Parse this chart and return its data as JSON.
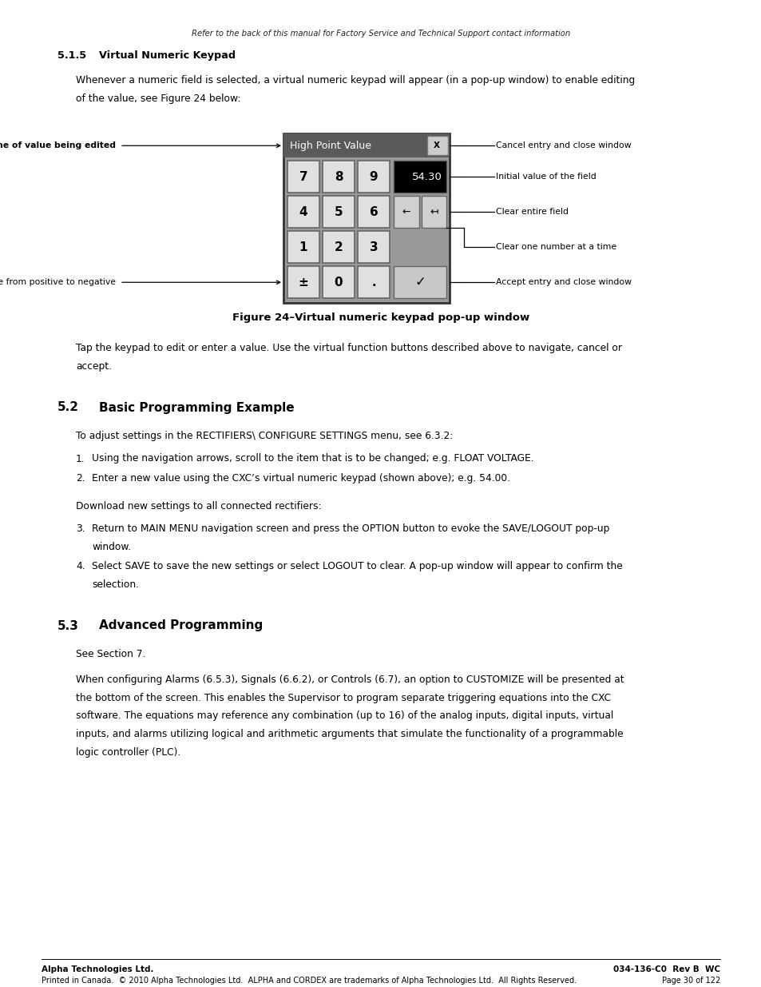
{
  "page_top_italic": "Refer to the back of this manual for Factory Service and Technical Support contact information",
  "section_515_num": "5.1.5",
  "section_515_title": "Virtual Numeric Keypad",
  "para_515_1": "Whenever a numeric field is selected, a virtual numeric keypad will appear (in a pop-up window) to enable editing",
  "para_515_2": "of the value, see Figure 24 below:",
  "keypad_label_name": "Name of value being edited",
  "keypad_label_toggle": "Toggle from positive to negative",
  "keypad_title": "High Point Value",
  "keypad_display": "54.30",
  "keypad_buttons": [
    [
      "7",
      "8",
      "9"
    ],
    [
      "4",
      "5",
      "6"
    ],
    [
      "1",
      "2",
      "3"
    ],
    [
      "±",
      "0",
      "."
    ]
  ],
  "keypad_right_labels": [
    "Cancel entry and close window",
    "Initial value of the field",
    "Clear entire field",
    "Clear one number at a time",
    "Accept entry and close window"
  ],
  "fig_caption": "Figure 24–Virtual numeric keypad pop-up window",
  "para_tap_1": "Tap the keypad to edit or enter a value. Use the virtual function buttons described above to navigate, cancel or",
  "para_tap_2": "accept.",
  "section_52_num": "5.2",
  "section_52_title": "Basic Programming Example",
  "para_52_intro": "To adjust settings in the RECTIFIERS\\ CONFIGURE SETTINGS menu, see 6.3.2:",
  "list_52_a1": "Using the navigation arrows, scroll to the item that is to be changed; e.g. FLOAT VOLTAGE.",
  "list_52_a2": "Enter a new value using the CXC’s virtual numeric keypad (shown above); e.g. 54.00.",
  "para_52_download": "Download new settings to all connected rectifiers:",
  "list_52_b3_1": "Return to MAIN MENU navigation screen and press the OPTION button to evoke the SAVE/LOGOUT pop-up",
  "list_52_b3_2": "window.",
  "list_52_b4_1": "Select SAVE to save the new settings or select LOGOUT to clear. A pop-up window will appear to confirm the",
  "list_52_b4_2": "selection.",
  "section_53_num": "5.3",
  "section_53_title": "Advanced Programming",
  "para_53_see": "See Section 7.",
  "para_53_1": "When configuring Alarms (6.5.3), Signals (6.6.2), or Controls (6.7), an option to CUSTOMIZE will be presented at",
  "para_53_2": "the bottom of the screen. This enables the Supervisor to program separate triggering equations into the CXC",
  "para_53_3": "software. The equations may reference any combination (up to 16) of the analog inputs, digital inputs, virtual",
  "para_53_4": "inputs, and alarms utilizing logical and arithmetic arguments that simulate the functionality of a programmable",
  "para_53_5": "logic controller (PLC).",
  "footer_left_bold": "Alpha Technologies Ltd.",
  "footer_left": "Printed in Canada.  © 2010 Alpha Technologies Ltd.  ALPHA and CORDEX are trademarks of Alpha Technologies Ltd.  All Rights Reserved.",
  "footer_right_bold": "034-136-C0  Rev B  WC",
  "footer_right": "Page 30 of 122",
  "bg_color": "#ffffff",
  "text_color": "#000000"
}
